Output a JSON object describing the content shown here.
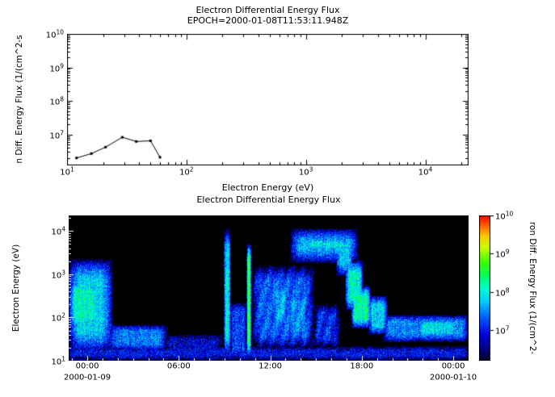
{
  "figure": {
    "background": "#ffffff"
  },
  "chart_data": [
    {
      "type": "line",
      "title": "Electron Differential Energy Flux",
      "subtitle": "EPOCH=2000-01-08T11:53:11.948Z",
      "xlabel": "Electron Energy (eV)",
      "ylabel_visible": "n Diff. Energy Flux (1/(cm^2-s",
      "line_color": "#000000",
      "xlim": [
        10,
        23000
      ],
      "ylim": [
        1200000,
        10000000000
      ],
      "xtick_exponents": [
        1,
        2,
        3,
        4
      ],
      "ytick_exponents": [
        7,
        8,
        9,
        10
      ],
      "x": [
        12,
        16,
        21,
        29,
        38,
        50,
        60
      ],
      "y": [
        2000000,
        2700000,
        4200000,
        8300000,
        6200000,
        6500000,
        2100000
      ]
    },
    {
      "type": "heatmap",
      "title": "Electron Differential Energy Flux",
      "ylabel": "Electron Energy (eV)",
      "background": "#000000",
      "ylim": [
        10,
        23000
      ],
      "ytick_exponents": [
        1,
        2,
        3,
        4
      ],
      "time_range_hours": [
        -1.22,
        25.0
      ],
      "xticks": [
        {
          "hour": 0,
          "label": "00:00"
        },
        {
          "hour": 6,
          "label": "06:00"
        },
        {
          "hour": 12,
          "label": "12:00"
        },
        {
          "hour": 18,
          "label": "18:00"
        },
        {
          "hour": 24,
          "label": "00:00"
        }
      ],
      "date_labels": [
        {
          "hour": 0,
          "label": "2000-01-09"
        },
        {
          "hour": 24,
          "label": "2000-01-10"
        }
      ],
      "colorbar": {
        "label_visible": "ron Diff. Energy Flux (1/(cm^2-",
        "log_range": [
          6.2,
          10
        ],
        "tick_exponents": [
          7,
          8,
          9,
          10
        ],
        "stops": [
          [
            0.0,
            "#00002a"
          ],
          [
            0.08,
            "#000080"
          ],
          [
            0.18,
            "#0000e0"
          ],
          [
            0.3,
            "#0060ff"
          ],
          [
            0.4,
            "#00c8ff"
          ],
          [
            0.5,
            "#00ffd0"
          ],
          [
            0.58,
            "#00ff60"
          ],
          [
            0.68,
            "#40ff00"
          ],
          [
            0.78,
            "#c8ff00"
          ],
          [
            0.86,
            "#ffc800"
          ],
          [
            0.93,
            "#ff6000"
          ],
          [
            1.0,
            "#ff0000"
          ]
        ]
      },
      "features": [
        {
          "t": [
            -1.25,
            1.7
          ],
          "e": [
            15,
            2300
          ],
          "v": 7.85,
          "ts": 0.7,
          "es": 0.5
        },
        {
          "t": [
            -1.25,
            0.9
          ],
          "e": [
            40,
            1000
          ],
          "v": 8.1,
          "ts": 0.5,
          "es": 0.4
        },
        {
          "t": [
            1.3,
            5.3
          ],
          "e": [
            17,
            68
          ],
          "v": 7.4,
          "ts": 0.6,
          "es": 0.15
        },
        {
          "t": [
            -1.25,
            25.0
          ],
          "e": [
            10,
            22
          ],
          "v": 6.95,
          "ts": 0.3,
          "es": 0.12
        },
        {
          "t": [
            5.0,
            8.9
          ],
          "e": [
            14,
            40
          ],
          "v": 6.85,
          "ts": 0.5,
          "es": 0.12
        },
        {
          "t": [
            8.95,
            9.4
          ],
          "e": [
            12,
            11000
          ],
          "v": 7.9,
          "ts": 0.12,
          "es": 0.5
        },
        {
          "t": [
            9.0,
            9.3
          ],
          "e": [
            15,
            3000
          ],
          "v": 8.2,
          "ts": 0.08,
          "es": 0.4
        },
        {
          "t": [
            9.35,
            10.45
          ],
          "e": [
            12,
            220
          ],
          "v": 7.2,
          "ts": 0.2,
          "es": 0.2
        },
        {
          "t": [
            10.45,
            10.75
          ],
          "e": [
            12,
            5200
          ],
          "v": 8.5,
          "ts": 0.07,
          "es": 0.4
        },
        {
          "t": [
            10.8,
            14.9
          ],
          "e": [
            18,
            1600
          ],
          "v": 7.45,
          "ts": 0.5,
          "es": 0.35,
          "stripe": true
        },
        {
          "t": [
            12.0,
            13.3
          ],
          "e": [
            50,
            750
          ],
          "v": 7.8,
          "ts": 0.4,
          "es": 0.3,
          "stripe": true
        },
        {
          "t": [
            13.0,
            14.6
          ],
          "e": [
            28,
            420
          ],
          "v": 7.7,
          "ts": 0.4,
          "es": 0.25,
          "stripe": true
        },
        {
          "t": [
            14.8,
            16.6
          ],
          "e": [
            20,
            200
          ],
          "v": 7.2,
          "ts": 0.4,
          "es": 0.2,
          "stripe": true
        },
        {
          "t": [
            13.3,
            17.8
          ],
          "e": [
            1800,
            11500
          ],
          "v": 7.65,
          "ts": 0.6,
          "es": 0.3
        },
        {
          "t": [
            14.2,
            17.2
          ],
          "e": [
            2600,
            9000
          ],
          "v": 7.95,
          "ts": 0.5,
          "es": 0.25
        },
        {
          "t": [
            16.3,
            17.4
          ],
          "e": [
            900,
            9000
          ],
          "v": 7.8,
          "ts": 0.25,
          "es": 0.3
        },
        {
          "t": [
            16.9,
            18.1
          ],
          "e": [
            140,
            2200
          ],
          "v": 8.0,
          "ts": 0.25,
          "es": 0.3
        },
        {
          "t": [
            17.3,
            18.6
          ],
          "e": [
            55,
            550
          ],
          "v": 8.2,
          "ts": 0.25,
          "es": 0.25
        },
        {
          "t": [
            18.4,
            19.7
          ],
          "e": [
            40,
            320
          ],
          "v": 7.8,
          "ts": 0.3,
          "es": 0.2
        },
        {
          "t": [
            19.4,
            25.0
          ],
          "e": [
            27,
            115
          ],
          "v": 7.45,
          "ts": 0.4,
          "es": 0.15
        },
        {
          "t": [
            21.6,
            24.4
          ],
          "e": [
            34,
            95
          ],
          "v": 7.85,
          "ts": 0.4,
          "es": 0.12
        }
      ]
    }
  ]
}
